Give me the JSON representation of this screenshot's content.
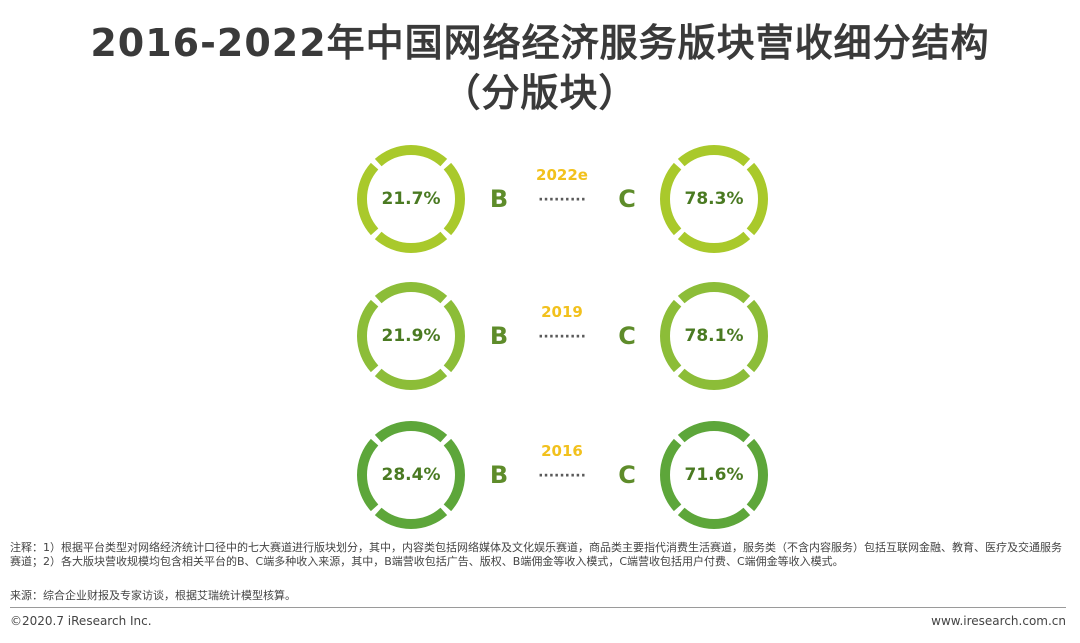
{
  "header": {
    "title_line1": "2016-2022年中国网络经济服务版块营收细分结构",
    "title_line2": "（分版块）"
  },
  "chart_data": {
    "type": "donut-pairs",
    "title": "2016-2022年中国网络经济服务版块营收细分结构（分版块）",
    "left_label": "B",
    "right_label": "C",
    "connector": "·········",
    "rows": [
      {
        "year": "2022e",
        "b_share": 21.7,
        "c_share": 78.3,
        "b_label": "21.7%",
        "c_label": "78.3%",
        "color": "#a9c92b"
      },
      {
        "year": "2019",
        "b_share": 21.9,
        "c_share": 78.1,
        "b_label": "21.9%",
        "c_label": "78.1%",
        "color": "#8cbd38"
      },
      {
        "year": "2016",
        "b_share": 28.4,
        "c_share": 71.6,
        "b_label": "28.4%",
        "c_label": "71.6%",
        "color": "#5da63a"
      }
    ],
    "colors": {
      "year_text": "#f2c11d",
      "letter": "#5e8c2a",
      "value_text": "#4a7a22"
    }
  },
  "notes": "注释：1）根据平台类型对网络经济统计口径中的七大赛道进行版块划分，其中，内容类包括网络媒体及文化娱乐赛道，商品类主要指代消费生活赛道，服务类（不含内容服务）包括互联网金融、教育、医疗及交通服务赛道；2）各大版块营收规模均包含相关平台的B、C端多种收入来源，其中，B端营收包括广告、版权、B端佣金等收入模式，C端营收包括用户付费、C端佣金等收入模式。",
  "source": "来源：综合企业财报及专家访谈，根据艾瑞统计模型核算。",
  "footer": {
    "copyright": "©2020.7 iResearch Inc.",
    "website": "www.iresearch.com.cn"
  }
}
